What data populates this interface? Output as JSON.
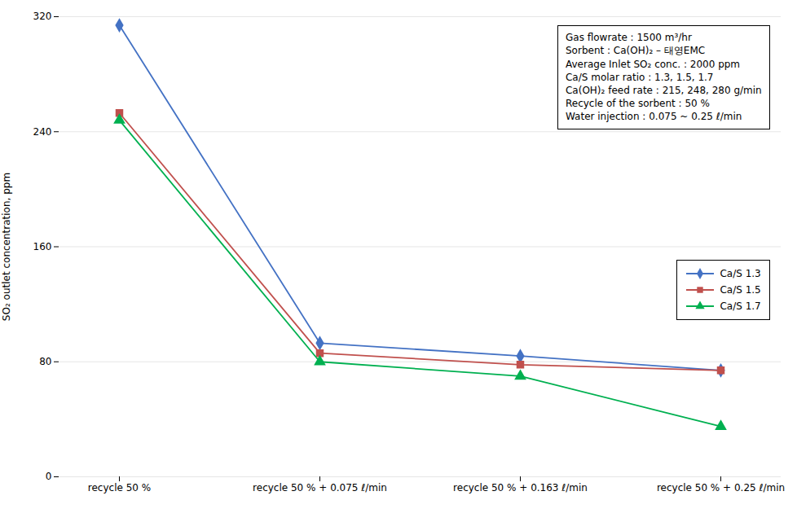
{
  "chart_data": {
    "type": "line",
    "categories": [
      "recycle 50 %",
      "recycle 50 % + 0.075 ℓ/min",
      "recycle 50 % + 0.163 ℓ/min",
      "recycle 50 % + 0.25 ℓ/min"
    ],
    "series": [
      {
        "name": "Ca/S 1.3",
        "color": "#4472C4",
        "marker": "diamond",
        "values": [
          314,
          93,
          84,
          74
        ]
      },
      {
        "name": "Ca/S 1.5",
        "color": "#C0504D",
        "marker": "square",
        "values": [
          253,
          86,
          78,
          74
        ]
      },
      {
        "name": "Ca/S 1.7",
        "color": "#00B050",
        "marker": "triangle",
        "values": [
          248,
          80,
          70,
          35
        ]
      }
    ],
    "ylabel": "SO₂ outlet concentration, ppm",
    "ylim": [
      0,
      320
    ],
    "yticks": [
      0,
      80,
      160,
      240,
      320
    ],
    "grid": true,
    "legend": "right",
    "annotation": "Gas flowrate : 1500 m³/hr\nSorbent : Ca(OH)₂ – 태영EMC\nAverage Inlet SO₂ conc. : 2000 ppm\nCa/S molar ratio : 1.3, 1.5, 1.7\nCa(OH)₂ feed rate : 215, 248, 280 g/min\nRecycle of the sorbent : 50 %\nWater injection : 0.075 ~ 0.25 ℓ/min"
  }
}
